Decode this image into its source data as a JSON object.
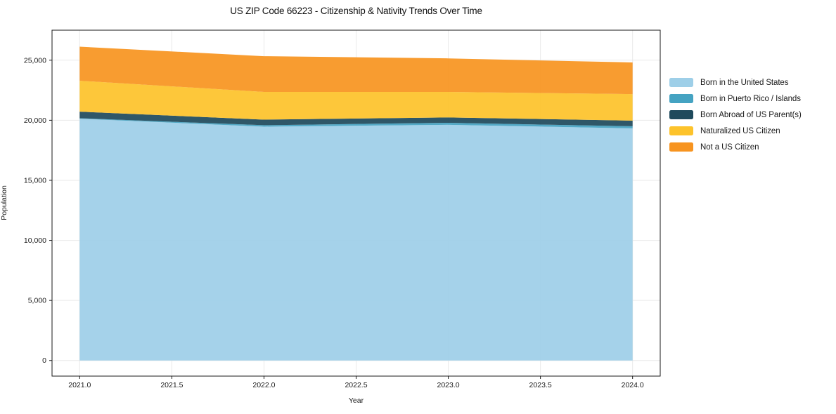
{
  "title": "US ZIP Code 66223 - Citizenship & Nativity Trends Over Time",
  "colors": {
    "background": "#ffffff",
    "grid": "#e9e9e9",
    "frame": "#1a1a1a",
    "tick_text": "#1a1a1a"
  },
  "chart_data": {
    "type": "area",
    "stacked": true,
    "title": "US ZIP Code 66223 - Citizenship & Nativity Trends Over Time",
    "xlabel": "Year",
    "ylabel": "Population",
    "x": [
      2021,
      2022,
      2023,
      2024
    ],
    "series": [
      {
        "name": "Born in the United States",
        "color": "#9ECFE8",
        "values": [
          20130,
          19470,
          19620,
          19330
        ]
      },
      {
        "name": "Born in Puerto Rico / Islands",
        "color": "#45A3C2",
        "values": [
          40,
          120,
          170,
          170
        ]
      },
      {
        "name": "Born Abroad of US Parent(s)",
        "color": "#1F4A5C",
        "values": [
          550,
          460,
          440,
          470
        ]
      },
      {
        "name": "Naturalized US Citizen",
        "color": "#FDC32B",
        "values": [
          2570,
          2310,
          2130,
          2210
        ]
      },
      {
        "name": "Not a US Citizen",
        "color": "#F79420",
        "values": [
          2840,
          2970,
          2790,
          2630
        ]
      }
    ],
    "totals": [
      26130,
      25330,
      25150,
      24810
    ],
    "x_ticks": [
      2021.0,
      2021.5,
      2022.0,
      2022.5,
      2023.0,
      2023.5,
      2024.0
    ],
    "x_tick_labels": [
      "2021.0",
      "2021.5",
      "2022.0",
      "2022.5",
      "2023.0",
      "2023.5",
      "2024.0"
    ],
    "y_ticks": [
      0,
      5000,
      10000,
      15000,
      20000,
      25000
    ],
    "y_tick_labels": [
      "0",
      "5,000",
      "10,000",
      "15,000",
      "20,000",
      "25,000"
    ],
    "xlim": [
      2020.85,
      2024.15
    ],
    "ylim": [
      -1300,
      27500
    ],
    "grid": true,
    "legend_position": "right"
  }
}
